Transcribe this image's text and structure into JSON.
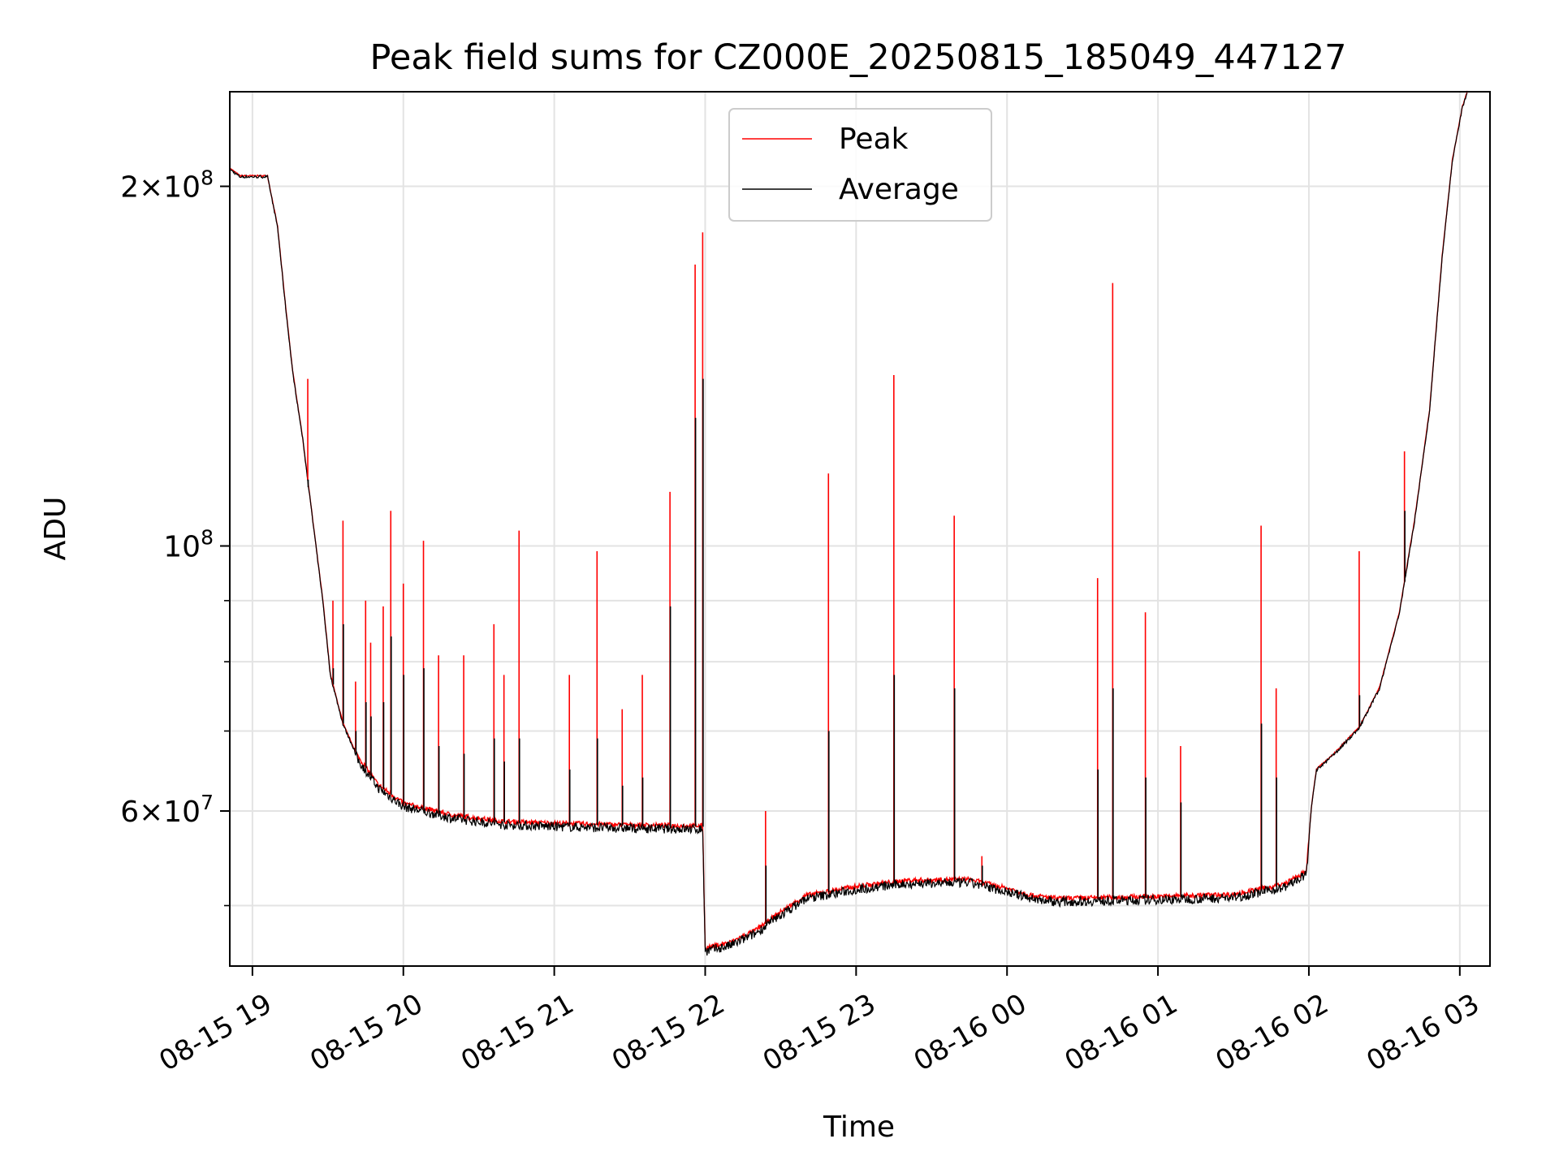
{
  "chart_data": {
    "type": "line",
    "title": "Peak field sums for CZ000E_20250815_185049_447127",
    "xlabel": "Time",
    "ylabel": "ADU",
    "yscale": "log",
    "xlim": [
      "2025-08-15 18:51",
      "2025-08-16 03:12"
    ],
    "ylim": [
      44500000,
      240000000
    ],
    "grid": true,
    "legend_position": "top-center",
    "x_ticks": [
      {
        "t": "2025-08-15 19:00",
        "label": "08-15 19"
      },
      {
        "t": "2025-08-15 20:00",
        "label": "08-15 20"
      },
      {
        "t": "2025-08-15 21:00",
        "label": "08-15 21"
      },
      {
        "t": "2025-08-15 22:00",
        "label": "08-15 22"
      },
      {
        "t": "2025-08-15 23:00",
        "label": "08-15 23"
      },
      {
        "t": "2025-08-16 00:00",
        "label": "08-16 00"
      },
      {
        "t": "2025-08-16 01:00",
        "label": "08-16 01"
      },
      {
        "t": "2025-08-16 02:00",
        "label": "08-16 02"
      },
      {
        "t": "2025-08-16 03:00",
        "label": "08-16 03"
      }
    ],
    "y_major_ticks": [
      {
        "v": 60000000,
        "mant": "6",
        "exp": "7"
      },
      {
        "v": 100000000,
        "mant": "",
        "exp": "8"
      },
      {
        "v": 200000000,
        "mant": "2",
        "exp": "8"
      }
    ],
    "y_minor_ticks": [
      50000000,
      70000000,
      80000000,
      90000000
    ],
    "series": [
      {
        "name": "Peak",
        "color": "#ff0000"
      },
      {
        "name": "Average",
        "color": "#000000"
      }
    ],
    "baseline": [
      [
        "2025-08-15 18:51",
        207000000
      ],
      [
        "2025-08-15 18:55",
        204000000
      ],
      [
        "2025-08-15 19:06",
        204000000
      ],
      [
        "2025-08-15 19:10",
        185000000
      ],
      [
        "2025-08-15 19:13",
        160000000
      ],
      [
        "2025-08-15 19:16",
        140000000
      ],
      [
        "2025-08-15 19:20",
        123000000
      ],
      [
        "2025-08-15 19:24",
        105000000
      ],
      [
        "2025-08-15 19:28",
        90000000
      ],
      [
        "2025-08-15 19:31",
        78000000
      ],
      [
        "2025-08-15 19:36",
        71000000
      ],
      [
        "2025-08-15 19:42",
        66500000
      ],
      [
        "2025-08-15 19:50",
        63000000
      ],
      [
        "2025-08-15 20:00",
        60800000
      ],
      [
        "2025-08-15 20:20",
        59400000
      ],
      [
        "2025-08-15 20:40",
        58700000
      ],
      [
        "2025-08-15 21:00",
        58500000
      ],
      [
        "2025-08-15 21:30",
        58300000
      ],
      [
        "2025-08-15 21:59",
        58200000
      ],
      [
        "2025-08-15 22:00",
        46000000
      ],
      [
        "2025-08-15 22:10",
        46500000
      ],
      [
        "2025-08-15 22:20",
        47600000
      ],
      [
        "2025-08-15 22:30",
        49300000
      ],
      [
        "2025-08-15 22:40",
        50900000
      ],
      [
        "2025-08-15 23:00",
        51800000
      ],
      [
        "2025-08-15 23:20",
        52400000
      ],
      [
        "2025-08-15 23:45",
        52500000
      ],
      [
        "2025-08-16 00:00",
        51600000
      ],
      [
        "2025-08-16 00:10",
        50900000
      ],
      [
        "2025-08-16 00:20",
        50600000
      ],
      [
        "2025-08-16 01:00",
        50800000
      ],
      [
        "2025-08-16 01:30",
        51000000
      ],
      [
        "2025-08-16 01:50",
        52000000
      ],
      [
        "2025-08-16 01:59",
        53300000
      ],
      [
        "2025-08-16 02:01",
        60500000
      ],
      [
        "2025-08-16 02:03",
        65000000
      ],
      [
        "2025-08-16 02:10",
        67000000
      ],
      [
        "2025-08-16 02:20",
        70500000
      ],
      [
        "2025-08-16 02:28",
        76000000
      ],
      [
        "2025-08-16 02:36",
        88000000
      ],
      [
        "2025-08-16 02:42",
        105000000
      ],
      [
        "2025-08-16 02:48",
        130000000
      ],
      [
        "2025-08-16 02:53",
        175000000
      ],
      [
        "2025-08-16 02:57",
        210000000
      ],
      [
        "2025-08-16 03:01",
        233000000
      ],
      [
        "2025-08-16 03:03",
        240000000
      ]
    ],
    "spikes": [
      [
        "2025-08-15 19:22",
        138000000,
        112000000
      ],
      [
        "2025-08-15 19:32",
        90000000,
        79000000
      ],
      [
        "2025-08-15 19:36",
        105000000,
        86000000
      ],
      [
        "2025-08-15 19:41",
        77000000,
        70000000
      ],
      [
        "2025-08-15 19:45",
        90000000,
        74000000
      ],
      [
        "2025-08-15 19:47",
        83000000,
        72000000
      ],
      [
        "2025-08-15 19:52",
        89000000,
        74000000
      ],
      [
        "2025-08-15 19:55",
        107000000,
        84000000
      ],
      [
        "2025-08-15 20:00",
        93000000,
        78000000
      ],
      [
        "2025-08-15 20:08",
        101000000,
        79000000
      ],
      [
        "2025-08-15 20:14",
        81000000,
        68000000
      ],
      [
        "2025-08-15 20:24",
        81000000,
        67000000
      ],
      [
        "2025-08-15 20:36",
        86000000,
        69000000
      ],
      [
        "2025-08-15 20:40",
        78000000,
        66000000
      ],
      [
        "2025-08-15 20:46",
        103000000,
        69000000
      ],
      [
        "2025-08-15 21:06",
        78000000,
        65000000
      ],
      [
        "2025-08-15 21:17",
        99000000,
        69000000
      ],
      [
        "2025-08-15 21:27",
        73000000,
        63000000
      ],
      [
        "2025-08-15 21:35",
        78000000,
        64000000
      ],
      [
        "2025-08-15 21:46",
        111000000,
        89000000
      ],
      [
        "2025-08-15 21:56",
        172000000,
        128000000
      ],
      [
        "2025-08-15 21:59",
        183000000,
        138000000
      ],
      [
        "2025-08-15 22:24",
        60000000,
        54000000
      ],
      [
        "2025-08-15 22:49",
        115000000,
        70000000
      ],
      [
        "2025-08-15 23:15",
        139000000,
        78000000
      ],
      [
        "2025-08-15 23:39",
        106000000,
        76000000
      ],
      [
        "2025-08-15 23:50",
        55000000,
        54000000
      ],
      [
        "2025-08-16 00:36",
        94000000,
        65000000
      ],
      [
        "2025-08-16 00:42",
        166000000,
        76000000
      ],
      [
        "2025-08-16 00:55",
        88000000,
        64000000
      ],
      [
        "2025-08-16 01:09",
        68000000,
        61000000
      ],
      [
        "2025-08-16 01:41",
        104000000,
        71000000
      ],
      [
        "2025-08-16 01:47",
        76000000,
        64000000
      ],
      [
        "2025-08-16 02:20",
        99000000,
        75000000
      ],
      [
        "2025-08-16 02:38",
        120000000,
        107000000
      ]
    ]
  }
}
